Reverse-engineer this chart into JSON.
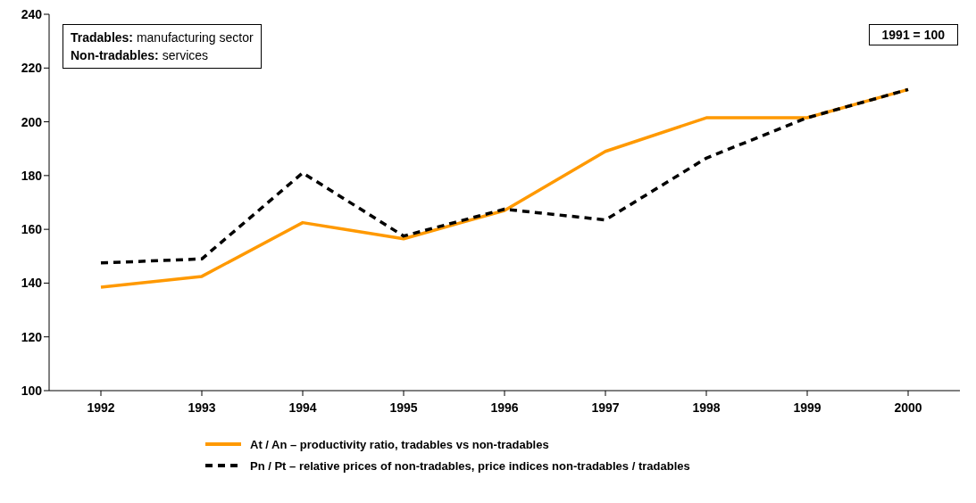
{
  "chart_data": {
    "type": "line",
    "categories": [
      "1992",
      "1993",
      "1994",
      "1995",
      "1996",
      "1997",
      "1998",
      "1999",
      "2000"
    ],
    "series": [
      {
        "name": "At / An – productivity ratio, tradables vs non-tradables",
        "color": "#ff9900",
        "values": [
          138.5,
          142.5,
          162.5,
          156.5,
          167,
          189,
          201.5,
          201.5,
          212
        ],
        "line_style": "solid"
      },
      {
        "name": "Pn / Pt – relative prices of non-tradables, price indices non-tradables / tradables",
        "color": "#000000",
        "values": [
          147.5,
          149,
          181,
          157.5,
          167.5,
          163.5,
          186.5,
          201.5,
          212
        ],
        "line_style": "dashed"
      }
    ],
    "ylim": [
      100,
      240
    ],
    "yticks": [
      100,
      120,
      140,
      160,
      180,
      200,
      220,
      240
    ],
    "legend": "bottom",
    "marker": "none",
    "annotations": [
      "Tradables: manufacturing sector\nNon-tradables: services",
      "1991 = 100"
    ]
  }
}
